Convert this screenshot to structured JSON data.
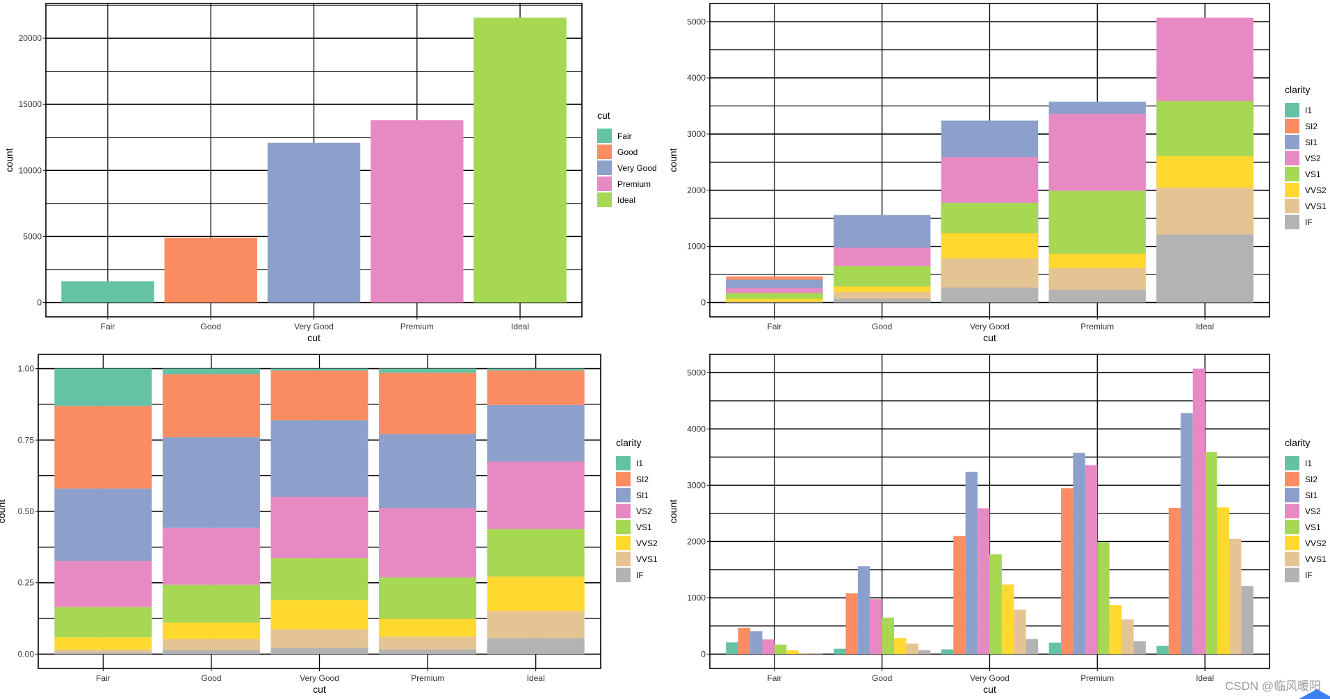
{
  "colors": {
    "cut": {
      "Fair": "#66C2A5",
      "Good": "#FC8D62",
      "Very Good": "#8DA0CB",
      "Premium": "#E78AC3",
      "Ideal": "#A6D854"
    },
    "clarity": {
      "I1": "#66C2A5",
      "SI2": "#FC8D62",
      "SI1": "#8DA0CB",
      "VS2": "#E78AC3",
      "VS1": "#A6D854",
      "VVS2": "#FFD92F",
      "VVS1": "#E5C494",
      "IF": "#B3B3B3"
    }
  },
  "chart_data": [
    {
      "type": "bar",
      "position": "identity",
      "xlabel": "cut",
      "ylabel": "count",
      "categories": [
        "Fair",
        "Good",
        "Very Good",
        "Premium",
        "Ideal"
      ],
      "values": [
        1610,
        4906,
        12082,
        13791,
        21551
      ],
      "ylim": [
        -1078,
        22629
      ],
      "yticks": [
        0,
        5000,
        10000,
        15000,
        20000
      ],
      "ytick_labels": [
        "0",
        "5000",
        "10000",
        "15000",
        "20000"
      ],
      "grid": true,
      "legend": {
        "title": "cut",
        "position": "right",
        "entries": [
          "Fair",
          "Good",
          "Very Good",
          "Premium",
          "Ideal"
        ]
      }
    },
    {
      "type": "bar",
      "position": "identity (overlapping)",
      "xlabel": "cut",
      "ylabel": "count",
      "categories": [
        "Fair",
        "Good",
        "Very Good",
        "Premium",
        "Ideal"
      ],
      "series": [
        {
          "name": "I1",
          "values": [
            210,
            96,
            84,
            205,
            146
          ]
        },
        {
          "name": "SI2",
          "values": [
            466,
            1081,
            2100,
            2949,
            2598
          ]
        },
        {
          "name": "SI1",
          "values": [
            408,
            1560,
            3240,
            3575,
            4282
          ]
        },
        {
          "name": "VS2",
          "values": [
            261,
            978,
            2591,
            3357,
            5071
          ]
        },
        {
          "name": "VS1",
          "values": [
            170,
            648,
            1775,
            1989,
            3589
          ]
        },
        {
          "name": "VVS2",
          "values": [
            69,
            286,
            1235,
            870,
            2606
          ]
        },
        {
          "name": "VVS1",
          "values": [
            17,
            186,
            789,
            616,
            2047
          ]
        },
        {
          "name": "IF",
          "values": [
            9,
            71,
            268,
            230,
            1212
          ]
        }
      ],
      "ylim": [
        -254,
        5325
      ],
      "yticks": [
        0,
        1000,
        2000,
        3000,
        4000,
        5000
      ],
      "ytick_labels": [
        "0",
        "1000",
        "2000",
        "3000",
        "4000",
        "5000"
      ],
      "grid": true,
      "legend": {
        "title": "clarity",
        "position": "right",
        "entries": [
          "I1",
          "SI2",
          "SI1",
          "VS2",
          "VS1",
          "VVS2",
          "VVS1",
          "IF"
        ]
      }
    },
    {
      "type": "bar",
      "position": "fill",
      "xlabel": "cut",
      "ylabel": "count",
      "categories": [
        "Fair",
        "Good",
        "Very Good",
        "Premium",
        "Ideal"
      ],
      "series": [
        {
          "name": "I1",
          "values": [
            210,
            96,
            84,
            205,
            146
          ]
        },
        {
          "name": "SI2",
          "values": [
            466,
            1081,
            2100,
            2949,
            2598
          ]
        },
        {
          "name": "SI1",
          "values": [
            408,
            1560,
            3240,
            3575,
            4282
          ]
        },
        {
          "name": "VS2",
          "values": [
            261,
            978,
            2591,
            3357,
            5071
          ]
        },
        {
          "name": "VS1",
          "values": [
            170,
            648,
            1775,
            1989,
            3589
          ]
        },
        {
          "name": "VVS2",
          "values": [
            69,
            286,
            1235,
            870,
            2606
          ]
        },
        {
          "name": "VVS1",
          "values": [
            17,
            186,
            789,
            616,
            2047
          ]
        },
        {
          "name": "IF",
          "values": [
            9,
            71,
            268,
            230,
            1212
          ]
        }
      ],
      "ylim": [
        -0.05,
        1.05
      ],
      "yticks": [
        0,
        0.25,
        0.5,
        0.75,
        1
      ],
      "ytick_labels": [
        "0.00",
        "0.25",
        "0.50",
        "0.75",
        "1.00"
      ],
      "grid": true,
      "legend": {
        "title": "clarity",
        "position": "right",
        "entries": [
          "I1",
          "SI2",
          "SI1",
          "VS2",
          "VS1",
          "VVS2",
          "VVS1",
          "IF"
        ]
      }
    },
    {
      "type": "bar",
      "position": "dodge",
      "xlabel": "cut",
      "ylabel": "count",
      "categories": [
        "Fair",
        "Good",
        "Very Good",
        "Premium",
        "Ideal"
      ],
      "series": [
        {
          "name": "I1",
          "values": [
            210,
            96,
            84,
            205,
            146
          ]
        },
        {
          "name": "SI2",
          "values": [
            466,
            1081,
            2100,
            2949,
            2598
          ]
        },
        {
          "name": "SI1",
          "values": [
            408,
            1560,
            3240,
            3575,
            4282
          ]
        },
        {
          "name": "VS2",
          "values": [
            261,
            978,
            2591,
            3357,
            5071
          ]
        },
        {
          "name": "VS1",
          "values": [
            170,
            648,
            1775,
            1989,
            3589
          ]
        },
        {
          "name": "VVS2",
          "values": [
            69,
            286,
            1235,
            870,
            2606
          ]
        },
        {
          "name": "VVS1",
          "values": [
            17,
            186,
            789,
            616,
            2047
          ]
        },
        {
          "name": "IF",
          "values": [
            9,
            71,
            268,
            230,
            1212
          ]
        }
      ],
      "ylim": [
        -254,
        5325
      ],
      "yticks": [
        0,
        1000,
        2000,
        3000,
        4000,
        5000
      ],
      "ytick_labels": [
        "0",
        "1000",
        "2000",
        "3000",
        "4000",
        "5000"
      ],
      "grid": true,
      "legend": {
        "title": "clarity",
        "position": "right",
        "entries": [
          "I1",
          "SI2",
          "SI1",
          "VS2",
          "VS1",
          "VVS2",
          "VVS1",
          "IF"
        ]
      }
    }
  ],
  "watermark": "CSDN @临风暖阳"
}
